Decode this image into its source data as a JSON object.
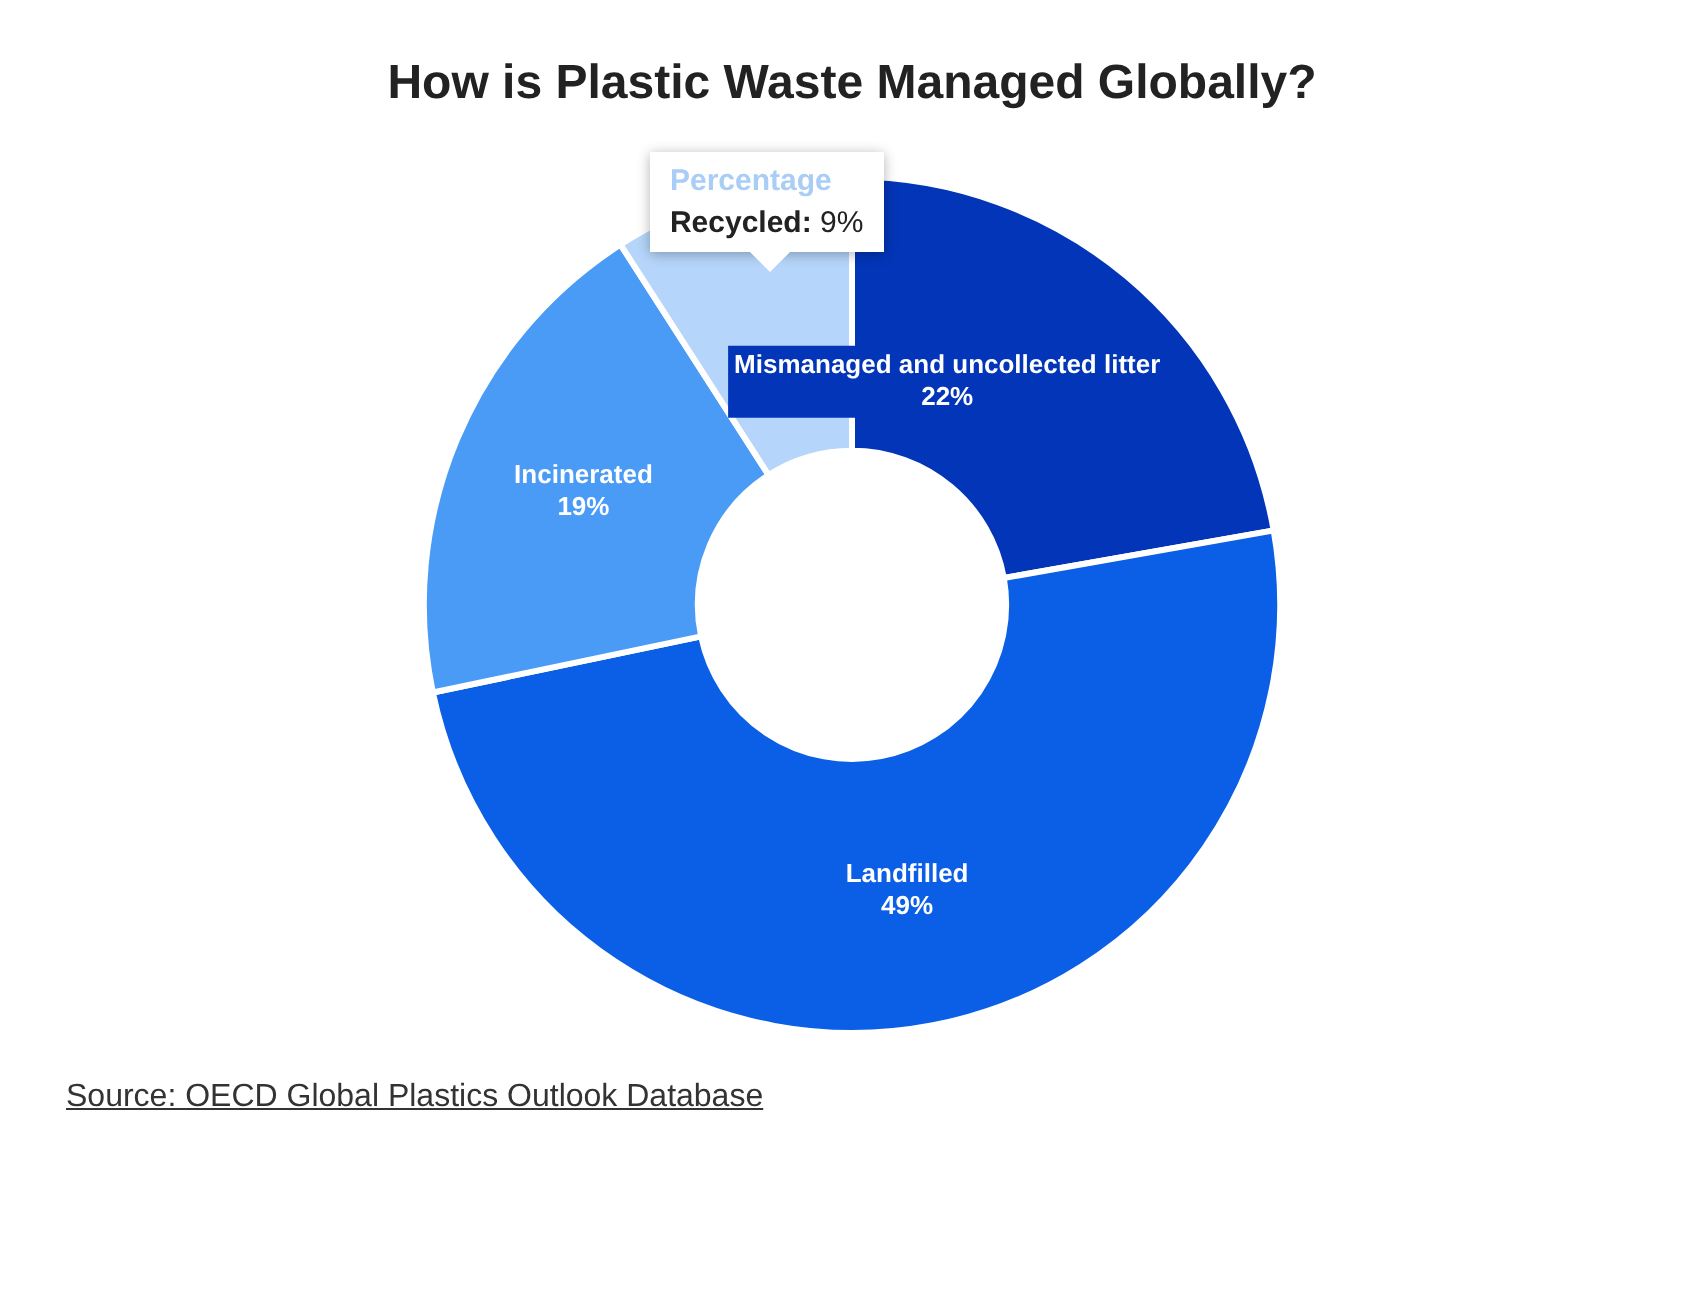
{
  "chart_data": {
    "type": "donut",
    "title": "How is Plastic Waste Managed Globally?",
    "categories": [
      "Mismanaged and uncollected litter",
      "Landfilled",
      "Incinerated",
      null
    ],
    "values": [
      22,
      49,
      19,
      9
    ],
    "value_labels": [
      "22%",
      "49%",
      "19%",
      null
    ],
    "colors": [
      "#0335b8",
      "#0b5fe6",
      "#4a9bf6",
      "#b5d5fa"
    ],
    "legend": false,
    "annotations": [
      "Percentage",
      "Recycled: 9%",
      "Source: OECD Global Plastics Outlook Database"
    ]
  }
}
